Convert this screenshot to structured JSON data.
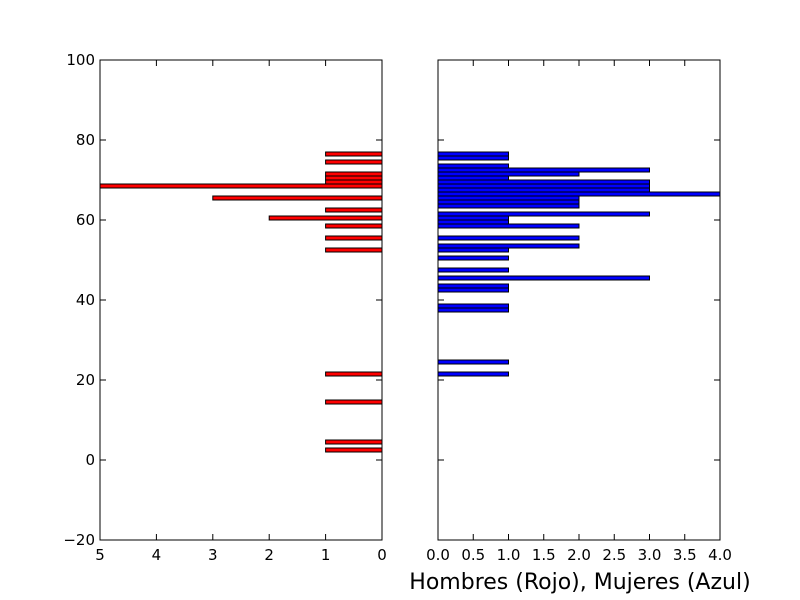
{
  "chart_data": [
    {
      "type": "bar",
      "orientation": "horizontal",
      "series": [
        {
          "color": "#ff0000",
          "bars": [
            {
              "y": 2.5,
              "value": 1
            },
            {
              "y": 4.5,
              "value": 1
            },
            {
              "y": 14.5,
              "value": 1
            },
            {
              "y": 21.5,
              "value": 1
            },
            {
              "y": 52.5,
              "value": 1
            },
            {
              "y": 55.5,
              "value": 1
            },
            {
              "y": 58.5,
              "value": 1
            },
            {
              "y": 60.5,
              "value": 2
            },
            {
              "y": 62.5,
              "value": 1
            },
            {
              "y": 65.5,
              "value": 3
            },
            {
              "y": 68.5,
              "value": 5
            },
            {
              "y": 69.5,
              "value": 1
            },
            {
              "y": 70.5,
              "value": 1
            },
            {
              "y": 71.5,
              "value": 1
            },
            {
              "y": 74.5,
              "value": 1
            },
            {
              "y": 76.5,
              "value": 1
            }
          ]
        }
      ],
      "bar_height": 1,
      "xlim": [
        5,
        0
      ],
      "x_inverted": true,
      "xticks": [
        5,
        4,
        3,
        2,
        1,
        0
      ],
      "xtick_labels": [
        "5",
        "4",
        "3",
        "2",
        "1",
        "0"
      ],
      "ylim": [
        -20,
        100
      ],
      "yticks": [
        -20,
        0,
        20,
        40,
        60,
        80,
        100
      ],
      "ytick_labels": [
        "−20",
        "0",
        "20",
        "40",
        "60",
        "80",
        "100"
      ],
      "grid": false
    },
    {
      "type": "bar",
      "orientation": "horizontal",
      "series": [
        {
          "color": "#0000ff",
          "bars": [
            {
              "y": 21.5,
              "value": 1
            },
            {
              "y": 24.5,
              "value": 1
            },
            {
              "y": 37.5,
              "value": 1
            },
            {
              "y": 38.5,
              "value": 1
            },
            {
              "y": 42.5,
              "value": 1
            },
            {
              "y": 43.5,
              "value": 1
            },
            {
              "y": 45.5,
              "value": 3
            },
            {
              "y": 47.5,
              "value": 1
            },
            {
              "y": 50.5,
              "value": 1
            },
            {
              "y": 52.5,
              "value": 1
            },
            {
              "y": 53.5,
              "value": 2
            },
            {
              "y": 55.5,
              "value": 2
            },
            {
              "y": 58.5,
              "value": 2
            },
            {
              "y": 59.5,
              "value": 1
            },
            {
              "y": 60.5,
              "value": 1
            },
            {
              "y": 61.5,
              "value": 3
            },
            {
              "y": 63.5,
              "value": 2
            },
            {
              "y": 64.5,
              "value": 2
            },
            {
              "y": 65.5,
              "value": 2
            },
            {
              "y": 66.5,
              "value": 4
            },
            {
              "y": 67.5,
              "value": 3
            },
            {
              "y": 68.5,
              "value": 3
            },
            {
              "y": 69.5,
              "value": 3
            },
            {
              "y": 70.5,
              "value": 1
            },
            {
              "y": 71.5,
              "value": 2
            },
            {
              "y": 72.5,
              "value": 3
            },
            {
              "y": 73.5,
              "value": 1
            },
            {
              "y": 75.5,
              "value": 1
            },
            {
              "y": 76.5,
              "value": 1
            }
          ]
        }
      ],
      "bar_height": 1,
      "xlim": [
        0,
        4
      ],
      "xticks": [
        0,
        0.5,
        1,
        1.5,
        2,
        2.5,
        3,
        3.5,
        4
      ],
      "xtick_labels": [
        "0.0",
        "0.5",
        "1.0",
        "1.5",
        "2.0",
        "2.5",
        "3.0",
        "3.5",
        "4.0"
      ],
      "xlabel": "Hombres (Rojo), Mujeres (Azul)",
      "ylim": [
        -20,
        100
      ],
      "yticks": [
        -20,
        0,
        20,
        40,
        60,
        80,
        100
      ],
      "ytick_labels": [],
      "grid": false
    }
  ]
}
